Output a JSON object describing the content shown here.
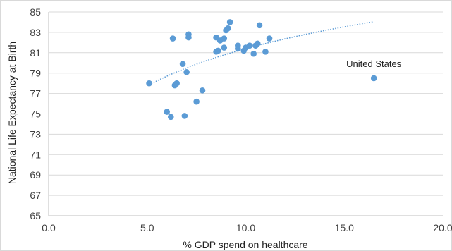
{
  "colors": {
    "marker": "#5B9BD5",
    "trendline": "#5B9BD5",
    "grid": "#D9D9D9",
    "axis": "#BFBFBF",
    "border": "#D9D9D9"
  },
  "chart_data": {
    "type": "scatter",
    "title": "",
    "xlabel": "% GDP spend on healthcare",
    "ylabel": "National Life Expectancy at Birth",
    "xlim": [
      0,
      20
    ],
    "ylim": [
      65,
      85
    ],
    "x_ticks": [
      0,
      5,
      10,
      15,
      20
    ],
    "x_tick_labels": [
      "0.0",
      "5.0",
      "10.0",
      "15.0",
      "20.0"
    ],
    "y_ticks": [
      65,
      67,
      69,
      71,
      73,
      75,
      77,
      79,
      81,
      83,
      85
    ],
    "y_tick_labels": [
      "65",
      "67",
      "69",
      "71",
      "73",
      "75",
      "77",
      "79",
      "81",
      "83",
      "85"
    ],
    "grid": "horizontal",
    "legend": "none",
    "trendline": {
      "type": "logarithmic",
      "style": "dotted",
      "x_range": [
        5.1,
        16.5
      ]
    },
    "annotations": [
      {
        "text": "United States",
        "x": 16.5,
        "y": 79.6
      }
    ],
    "series": [
      {
        "points": [
          {
            "x": 5.1,
            "y": 78.0
          },
          {
            "x": 6.0,
            "y": 75.2
          },
          {
            "x": 6.2,
            "y": 74.7
          },
          {
            "x": 6.3,
            "y": 82.4
          },
          {
            "x": 6.4,
            "y": 77.8
          },
          {
            "x": 6.5,
            "y": 78.0
          },
          {
            "x": 6.8,
            "y": 79.9
          },
          {
            "x": 6.9,
            "y": 74.8
          },
          {
            "x": 7.0,
            "y": 79.1
          },
          {
            "x": 7.1,
            "y": 82.8
          },
          {
            "x": 7.1,
            "y": 82.5
          },
          {
            "x": 7.5,
            "y": 76.2
          },
          {
            "x": 7.8,
            "y": 77.3
          },
          {
            "x": 8.5,
            "y": 82.5
          },
          {
            "x": 8.5,
            "y": 81.1
          },
          {
            "x": 8.6,
            "y": 81.2
          },
          {
            "x": 8.7,
            "y": 82.2
          },
          {
            "x": 8.9,
            "y": 82.4
          },
          {
            "x": 8.9,
            "y": 81.5
          },
          {
            "x": 9.0,
            "y": 83.2
          },
          {
            "x": 9.1,
            "y": 83.4
          },
          {
            "x": 9.2,
            "y": 84.0
          },
          {
            "x": 9.6,
            "y": 81.7
          },
          {
            "x": 9.6,
            "y": 81.4
          },
          {
            "x": 9.9,
            "y": 81.2
          },
          {
            "x": 10.0,
            "y": 81.5
          },
          {
            "x": 10.2,
            "y": 81.7
          },
          {
            "x": 10.4,
            "y": 80.9
          },
          {
            "x": 10.5,
            "y": 81.7
          },
          {
            "x": 10.6,
            "y": 81.9
          },
          {
            "x": 10.7,
            "y": 83.7
          },
          {
            "x": 11.0,
            "y": 81.1
          },
          {
            "x": 11.2,
            "y": 82.4
          },
          {
            "x": 16.5,
            "y": 78.5
          }
        ]
      }
    ]
  }
}
